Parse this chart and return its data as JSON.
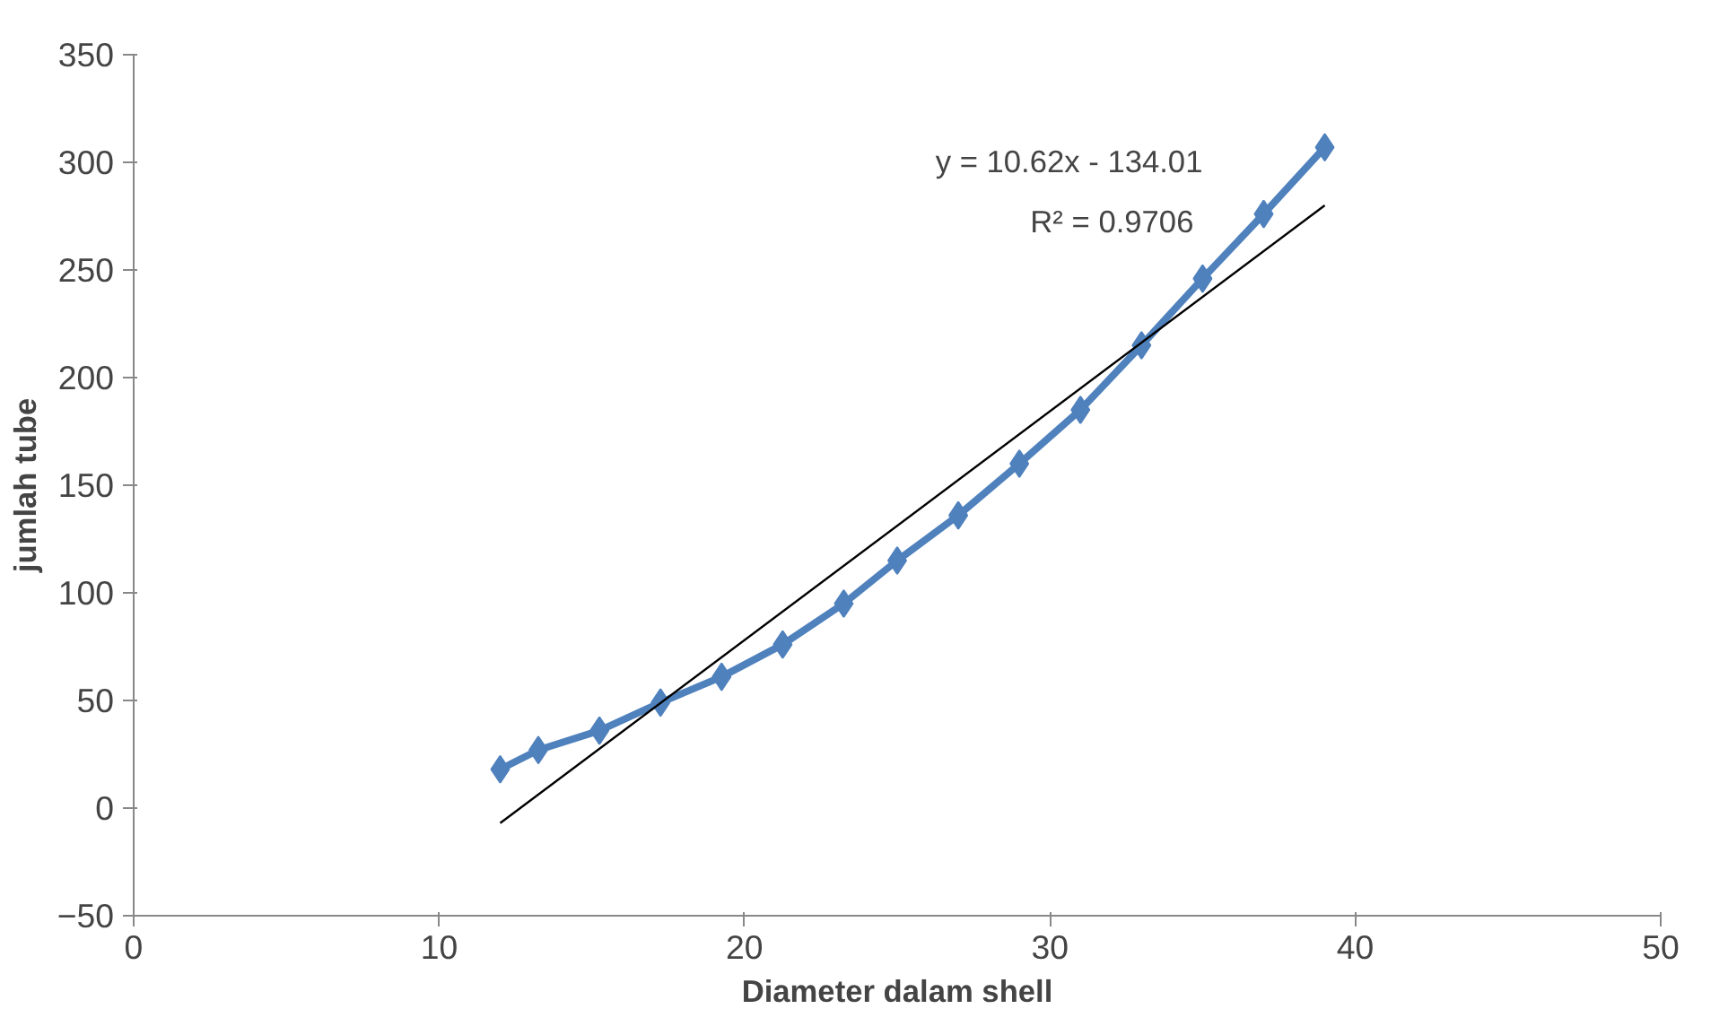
{
  "chart_data": {
    "type": "line",
    "xlabel": "Diameter dalam shell",
    "ylabel": "jumlah tube",
    "x": [
      12,
      13.25,
      15.25,
      17.25,
      19.25,
      21.25,
      23.25,
      25,
      27,
      29,
      31,
      33,
      35,
      37,
      39
    ],
    "series": [
      {
        "color": "#4f81bd",
        "values": [
          18,
          27,
          36,
          49,
          61,
          76,
          95,
          115,
          136,
          160,
          185,
          215,
          246,
          276,
          307
        ]
      },
      {
        "type": "line",
        "color": "#000000",
        "marker": "none",
        "x": [
          12,
          39
        ],
        "values": [
          -7,
          280
        ]
      }
    ],
    "annotations": [
      "y = 10.62x - 134.01",
      "R² = 0.9706"
    ],
    "xlim": [
      0,
      50
    ],
    "ylim": [
      -50,
      350
    ],
    "xticks": [
      0,
      10,
      20,
      30,
      40,
      50
    ],
    "yticks": [
      -50,
      0,
      50,
      100,
      150,
      200,
      250,
      300,
      350
    ],
    "marker": "diamond",
    "grid": false
  }
}
